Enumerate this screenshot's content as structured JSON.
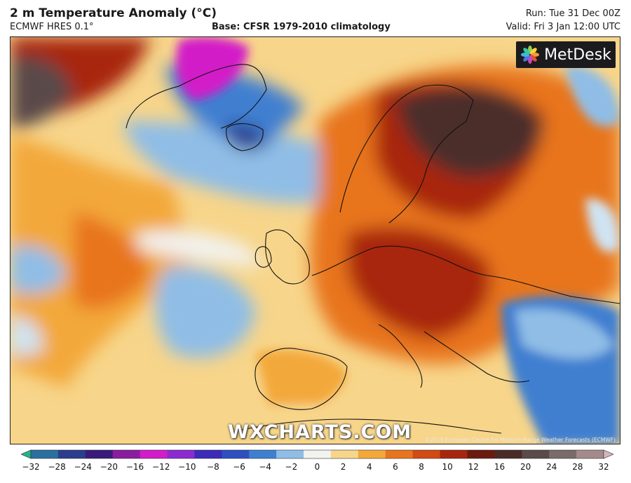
{
  "header": {
    "title": "2 m Temperature Anomaly (°C)",
    "model": "ECMWF HRES 0.1°",
    "base": "Base: CFSR 1979-2010 climatology",
    "run": "Run: Tue 31 Dec 00Z",
    "valid": "Valid: Fri 3 Jan 12:00 UTC"
  },
  "branding": {
    "logo": "MetDesk",
    "watermark": "WXCHARTS.COM",
    "copyright": "©2019 European Centre for Medium-Range Weather Forecasts (ECMWF)"
  },
  "colorbar": {
    "ticks": [
      "−32",
      "−28",
      "−24",
      "−20",
      "−16",
      "−12",
      "−10",
      "−8",
      "−6",
      "−4",
      "−2",
      "0",
      "2",
      "4",
      "6",
      "8",
      "10",
      "12",
      "16",
      "20",
      "24",
      "28",
      "32"
    ],
    "colors": [
      "#22b58a",
      "#2a6f9e",
      "#2b3d8c",
      "#3a1a7a",
      "#8a1ca0",
      "#d21cc8",
      "#8b2bd0",
      "#3c2ab8",
      "#2f4fc0",
      "#3f7fd0",
      "#8fbde6",
      "#f2f2ee",
      "#f7d58a",
      "#f3a83a",
      "#e8741d",
      "#d24a14",
      "#a8260f",
      "#6b1a10",
      "#4b2a28",
      "#5a4a4a",
      "#7a6a6a",
      "#a48a8a",
      "#d3b6c0"
    ]
  },
  "map": {
    "region": "North Atlantic and Europe",
    "colors": {
      "warm_extreme": "#4b2d2b",
      "warm_strong": "#a8260f",
      "warm": "#e8741d",
      "mild": "#f3a83a",
      "slight": "#f7d58a",
      "neutral": "#f2f2ee",
      "cool": "#8fbde6",
      "cold": "#3f7fd0",
      "very_cold": "#2b3d8c",
      "extreme_cold": "#d21cc8"
    }
  }
}
